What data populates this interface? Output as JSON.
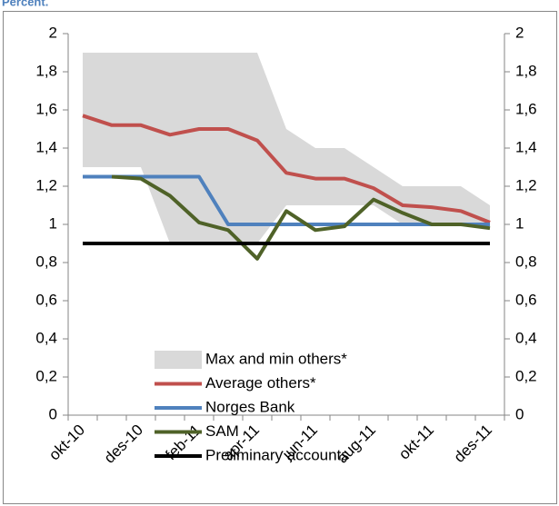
{
  "chart_data": {
    "type": "line",
    "subtitle": "Percent.",
    "categories": [
      "okt-10",
      null,
      "des-10",
      null,
      "feb-11",
      null,
      "apr-11",
      null,
      "jun-11",
      null,
      "aug-11",
      null,
      "okt-11",
      null,
      "des-11"
    ],
    "ylim": [
      0,
      2
    ],
    "yticks": [
      0,
      {
        "value": 0.2,
        "label": "0,2"
      },
      {
        "value": 0.4,
        "label": "0,4"
      },
      {
        "value": 0.6,
        "label": "0,6"
      },
      {
        "value": 0.8,
        "label": "0,8"
      },
      1,
      {
        "value": 1.2,
        "label": "1,2"
      },
      {
        "value": 1.4,
        "label": "1,4"
      },
      {
        "value": 1.6,
        "label": "1,6"
      },
      {
        "value": 1.8,
        "label": "1,8"
      },
      2
    ],
    "y2lim": [
      0,
      2
    ],
    "y2ticks": [
      0,
      {
        "value": 0.2,
        "label": "0,2"
      },
      {
        "value": 0.4,
        "label": "0,4"
      },
      {
        "value": 0.6,
        "label": "0,6"
      },
      {
        "value": 0.8,
        "label": "0,8"
      },
      1,
      {
        "value": 1.2,
        "label": "1,2"
      },
      {
        "value": 1.4,
        "label": "1,4"
      },
      {
        "value": 1.6,
        "label": "1,6"
      },
      {
        "value": 1.8,
        "label": "1,8"
      },
      2
    ],
    "legend": "inside-bottom",
    "series": [
      {
        "name": "Max and min others*",
        "color": "#d9d9d9",
        "kind": "range",
        "high": [
          1.9,
          1.9,
          1.9,
          1.9,
          1.9,
          1.9,
          1.9,
          1.5,
          1.4,
          1.4,
          1.3,
          1.2,
          1.2,
          1.2,
          1.1
        ],
        "low": [
          1.3,
          1.3,
          1.3,
          0.9,
          0.9,
          0.9,
          0.9,
          1.1,
          1.1,
          1.1,
          1.1,
          1.0,
          1.0,
          1.0,
          1.0
        ]
      },
      {
        "name": "Average others*",
        "color": "#c0504d",
        "values": [
          1.57,
          1.52,
          1.52,
          1.47,
          1.5,
          1.5,
          1.44,
          1.27,
          1.24,
          1.24,
          1.19,
          1.1,
          1.09,
          1.07,
          1.01
        ]
      },
      {
        "name": "Norges Bank",
        "color": "#4f81bd",
        "values": [
          1.25,
          1.25,
          1.25,
          1.25,
          1.25,
          1.0,
          1.0,
          1.0,
          1.0,
          1.0,
          1.0,
          1.0,
          1.0,
          1.0,
          1.0
        ]
      },
      {
        "name": "SAM",
        "color": "#4f6228",
        "values": [
          null,
          1.25,
          1.24,
          1.15,
          1.01,
          0.97,
          0.82,
          1.07,
          0.97,
          0.99,
          1.13,
          1.06,
          1.0,
          1.0,
          0.98
        ]
      },
      {
        "name": "Preliminary accounts",
        "color": "#000000",
        "values": [
          0.9,
          0.9,
          0.9,
          0.9,
          0.9,
          0.9,
          0.9,
          0.9,
          0.9,
          0.9,
          0.9,
          0.9,
          0.9,
          0.9,
          0.9
        ]
      }
    ]
  }
}
